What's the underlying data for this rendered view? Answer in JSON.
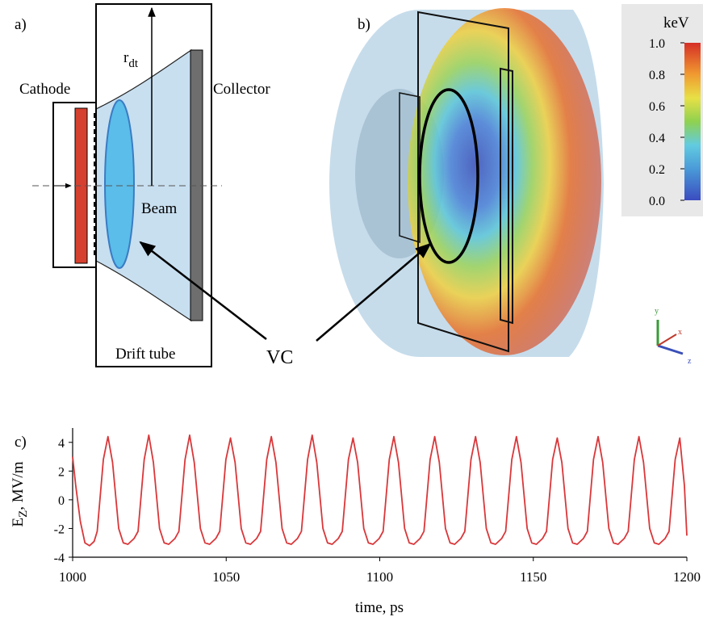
{
  "panel_a": {
    "label": "a)",
    "cathode": "Cathode",
    "collector": "Collector",
    "radius": "r",
    "radius_sub": "dt",
    "beam": "Beam",
    "drift_tube": "Drift tube"
  },
  "vc_label": "VC",
  "panel_b": {
    "label": "b)",
    "colorbar": {
      "title": "keV",
      "lim": [
        0,
        1
      ],
      "ticks": [
        {
          "value": 0,
          "label": "0.0"
        },
        0.2,
        0.4,
        0.6,
        0.8,
        {
          "value": 1,
          "label": "1.0"
        }
      ]
    },
    "axes_labels": [
      "y",
      "x",
      "z"
    ]
  },
  "chart_data": {
    "type": "line",
    "label": "c)",
    "xlabel": "time, ps",
    "ylabel": "E",
    "ylabel_sub": "Z",
    "ylabel_unit": ", MV/m",
    "xlim": [
      1000,
      1200
    ],
    "xticks": [
      1000,
      1050,
      1100,
      1150,
      1200
    ],
    "ylim": [
      -4,
      5
    ],
    "yticks": [
      -4,
      -2,
      0,
      2,
      4
    ],
    "x": [
      1000,
      1001,
      1002.5,
      1004,
      1005.5,
      1007,
      1008,
      1010,
      1011.5,
      1013,
      1015,
      1016.5,
      1018,
      1020,
      1021.3,
      1023.3,
      1024.8,
      1026.3,
      1028.3,
      1029.8,
      1031.3,
      1033.3,
      1034.6,
      1036.6,
      1038.1,
      1039.6,
      1041.6,
      1043.1,
      1044.6,
      1046.6,
      1047.9,
      1049.9,
      1051.4,
      1052.9,
      1054.9,
      1056.4,
      1057.9,
      1059.9,
      1061.2,
      1063.2,
      1064.7,
      1066.2,
      1068.2,
      1069.7,
      1071.2,
      1073.2,
      1074.5,
      1076.5,
      1078,
      1079.5,
      1081.5,
      1083,
      1084.5,
      1086.5,
      1087.8,
      1089.8,
      1091.3,
      1092.8,
      1094.8,
      1096.3,
      1097.8,
      1099.8,
      1101.1,
      1103.1,
      1104.6,
      1106.1,
      1108.1,
      1109.6,
      1111.1,
      1113.1,
      1114.4,
      1116.4,
      1117.9,
      1119.4,
      1121.4,
      1122.9,
      1124.4,
      1126.4,
      1127.7,
      1129.7,
      1131.2,
      1132.7,
      1134.7,
      1136.2,
      1137.7,
      1139.7,
      1141,
      1143,
      1144.5,
      1146,
      1148,
      1149.5,
      1151,
      1153,
      1154.3,
      1156.3,
      1157.8,
      1159.3,
      1161.3,
      1162.8,
      1164.3,
      1166.3,
      1167.6,
      1169.6,
      1171.1,
      1172.6,
      1174.6,
      1176.1,
      1177.6,
      1179.6,
      1180.9,
      1182.9,
      1184.4,
      1185.9,
      1187.9,
      1189.4,
      1190.9,
      1192.9,
      1194.2,
      1196.2,
      1197.7,
      1199.2,
      1200
    ],
    "series": [
      {
        "color": "#d9373a",
        "values": [
          3.0,
          1.0,
          -1.5,
          -3.0,
          -3.2,
          -2.9,
          -2.2,
          2.8,
          4.4,
          2.6,
          -2.0,
          -3.0,
          -3.1,
          -2.7,
          -2.2,
          2.8,
          4.5,
          2.6,
          -2.0,
          -3.0,
          -3.1,
          -2.7,
          -2.2,
          2.8,
          4.5,
          2.6,
          -2.0,
          -3.0,
          -3.1,
          -2.7,
          -2.2,
          2.8,
          4.3,
          2.6,
          -2.0,
          -3.0,
          -3.1,
          -2.7,
          -2.2,
          2.8,
          4.4,
          2.6,
          -2.0,
          -3.0,
          -3.1,
          -2.7,
          -2.2,
          2.8,
          4.5,
          2.6,
          -2.0,
          -3.0,
          -3.1,
          -2.7,
          -2.2,
          2.8,
          4.3,
          2.6,
          -2.0,
          -3.0,
          -3.1,
          -2.7,
          -2.2,
          2.8,
          4.4,
          2.6,
          -2.0,
          -3.0,
          -3.1,
          -2.7,
          -2.2,
          2.8,
          4.4,
          2.6,
          -2.0,
          -3.0,
          -3.1,
          -2.7,
          -2.2,
          2.8,
          4.4,
          2.6,
          -2.0,
          -3.0,
          -3.1,
          -2.7,
          -2.2,
          2.8,
          4.4,
          2.6,
          -2.0,
          -3.0,
          -3.1,
          -2.7,
          -2.2,
          2.8,
          4.3,
          2.6,
          -2.0,
          -3.0,
          -3.1,
          -2.7,
          -2.2,
          2.8,
          4.4,
          2.6,
          -2.0,
          -3.0,
          -3.1,
          -2.7,
          -2.2,
          2.8,
          4.4,
          2.6,
          -2.0,
          -3.0,
          -3.1,
          -2.7,
          -2.2,
          2.8,
          4.3,
          1.0,
          -2.5
        ]
      }
    ]
  }
}
